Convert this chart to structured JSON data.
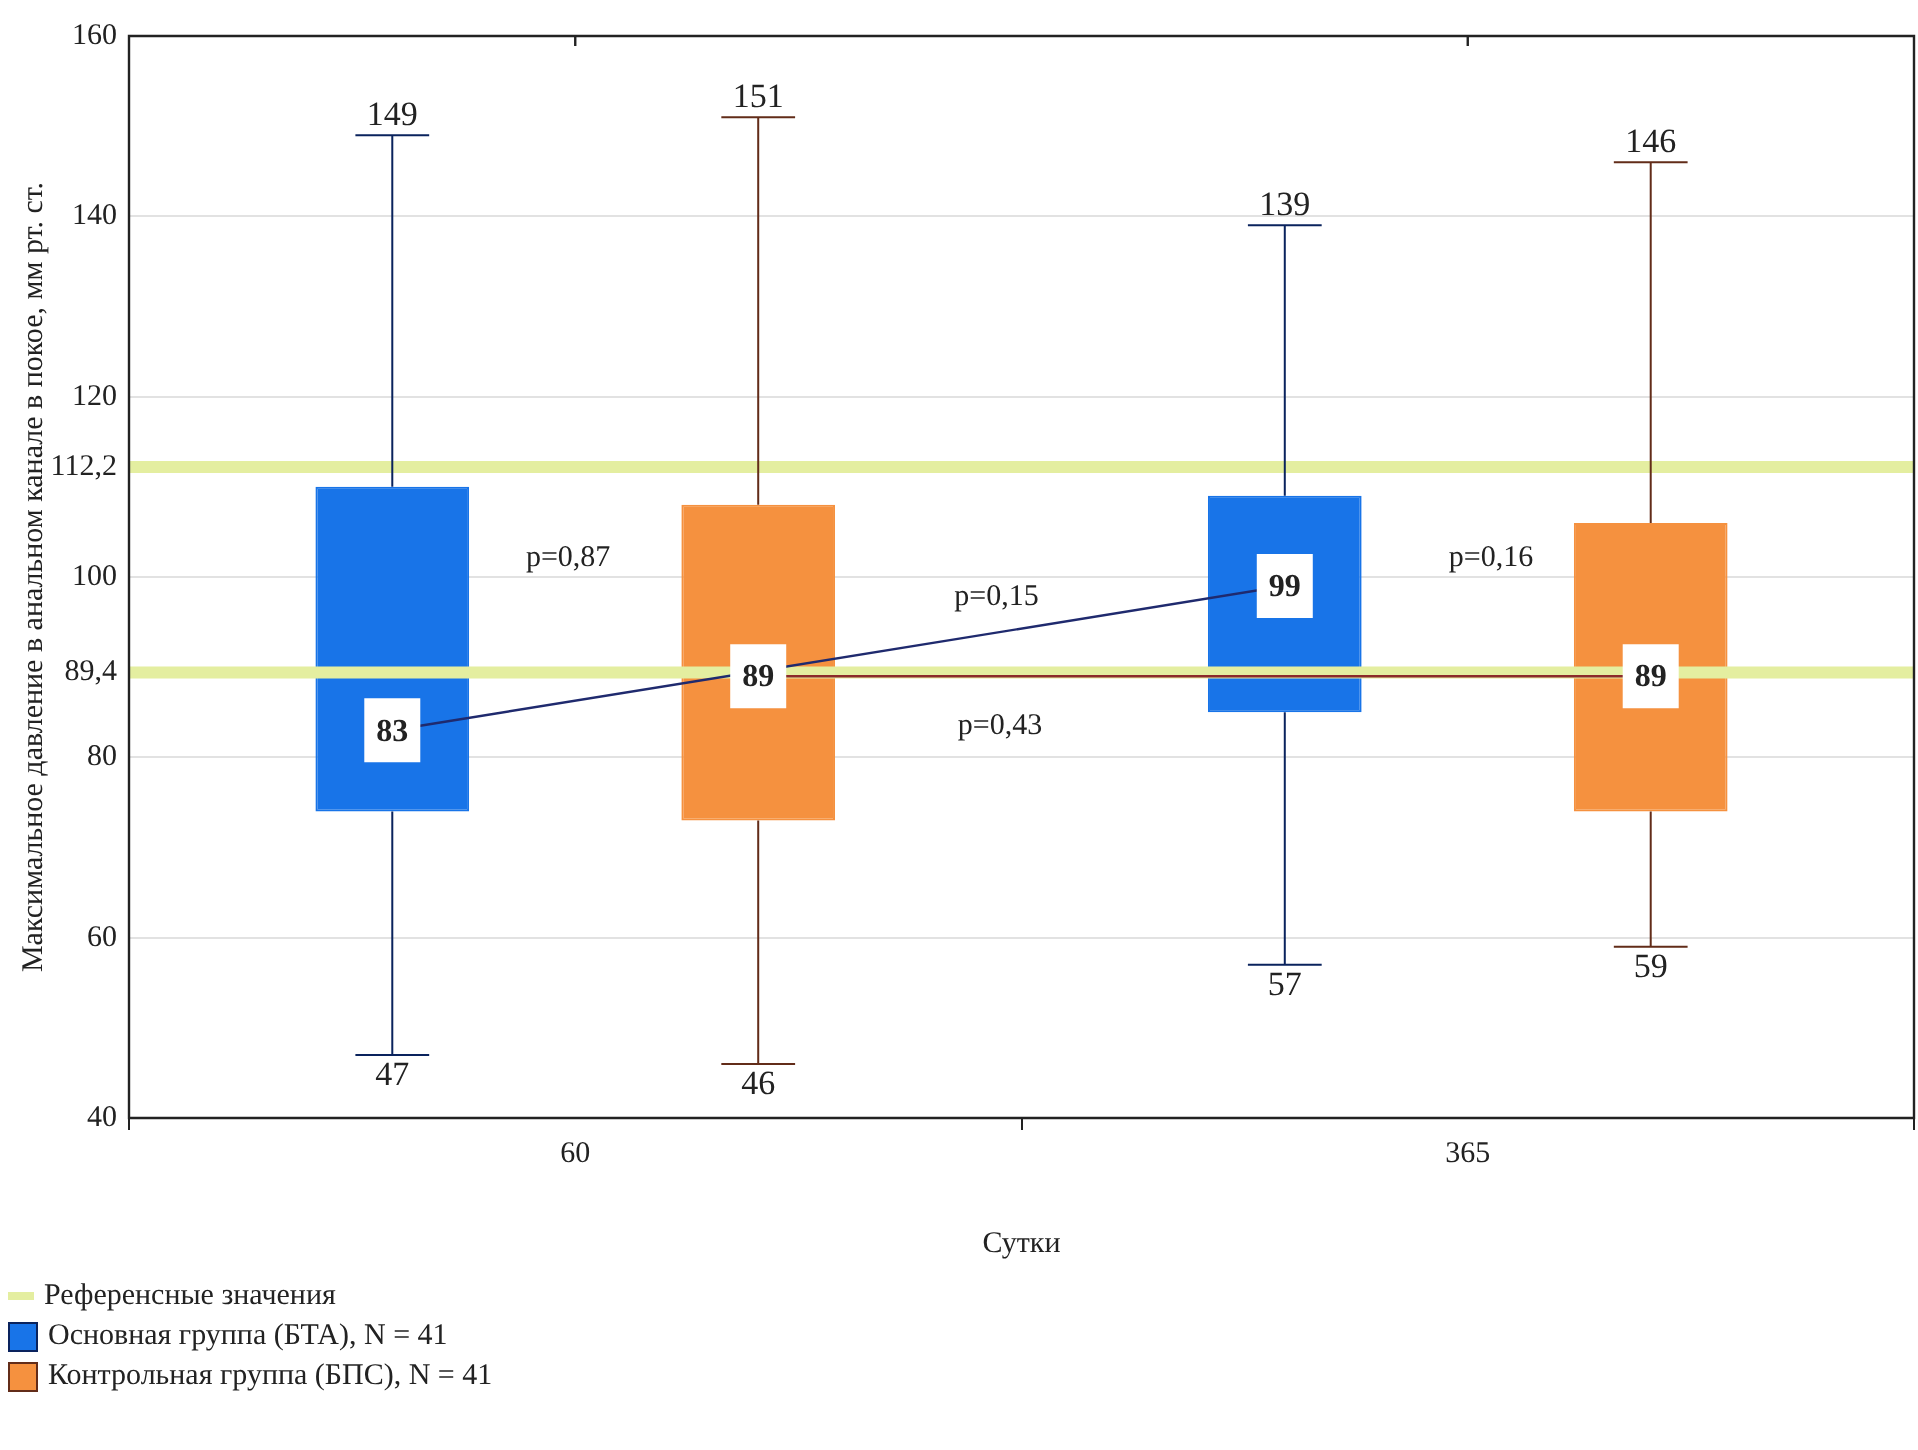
{
  "chart_data": {
    "type": "box",
    "xlabel": "Сутки",
    "ylabel": "Максимальное давление в анальном канале в покое, мм рт. ст.",
    "categories": [
      "60",
      "365"
    ],
    "series": [
      {
        "name": "Основная группа (БТА), N = 41",
        "color": "#1874e8",
        "boxes": [
          {
            "low": 47,
            "q1": 74,
            "median": 83,
            "q3": 110,
            "high": 149
          },
          {
            "low": 57,
            "q1": 85,
            "median": 99,
            "q3": 109,
            "high": 139
          }
        ]
      },
      {
        "name": "Контрольная группа (БПС), N = 41",
        "color": "#f5913f",
        "boxes": [
          {
            "low": 46,
            "q1": 73,
            "median": 89,
            "q3": 108,
            "high": 151
          },
          {
            "low": 59,
            "q1": 74,
            "median": 89,
            "q3": 106,
            "high": 146
          }
        ]
      },
      {
        "type": "line",
        "color": "#1f2a6e",
        "values": [
          83,
          99
        ]
      },
      {
        "type": "line",
        "color": "#8b2a2a",
        "values": [
          89,
          89
        ]
      }
    ],
    "ylim": [
      40,
      160
    ],
    "yticks": [
      40,
      60,
      80,
      100,
      120,
      140,
      160
    ],
    "ref_lines": [
      {
        "axis": "y",
        "value": 112.2,
        "label": "112,2",
        "color": "#e4eea0"
      },
      {
        "axis": "y",
        "value": 89.4,
        "label": "89,4",
        "color": "#e4eea0"
      }
    ],
    "annotations": [
      "p=0,87",
      "p=0,15",
      "p=0,43",
      "p=0,16",
      "149",
      "47",
      "139",
      "57",
      "151",
      "46",
      "146",
      "59",
      "Референсные значения"
    ],
    "data_labels": true,
    "grid": "y",
    "legend": "bottom left"
  }
}
